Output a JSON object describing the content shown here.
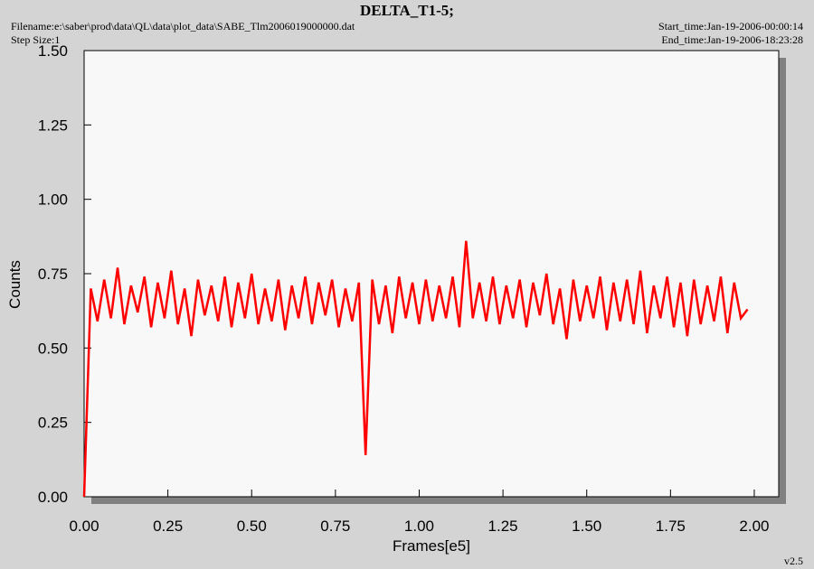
{
  "chart_data": {
    "type": "line",
    "title": "DELTA_T1-5;",
    "filename": "Filename:e:\\saber\\prod\\data\\QL\\data\\plot_data\\SABE_Tlm2006019000000.dat",
    "step_size": "Step Size:1",
    "start_time": "Start_time:Jan-19-2006-00:00:14",
    "end_time": "End_time:Jan-19-2006-18:23:28",
    "version": "v2.5",
    "xlabel": "Frames[e5]",
    "ylabel": "Counts",
    "xlim": [
      0,
      2.073
    ],
    "ylim": [
      0,
      1.5
    ],
    "xticks": [
      {
        "value": 0,
        "label": "0.00"
      },
      {
        "value": 0.25,
        "label": "0.25"
      },
      {
        "value": 0.5,
        "label": "0.50"
      },
      {
        "value": 0.75,
        "label": "0.75"
      },
      {
        "value": 1,
        "label": "1.00"
      },
      {
        "value": 1.25,
        "label": "1.25"
      },
      {
        "value": 1.5,
        "label": "1.50"
      },
      {
        "value": 1.75,
        "label": "1.75"
      },
      {
        "value": 2,
        "label": "2.00"
      }
    ],
    "yticks": [
      {
        "value": 0,
        "label": "0.00"
      },
      {
        "value": 0.25,
        "label": "0.25"
      },
      {
        "value": 0.5,
        "label": "0.50"
      },
      {
        "value": 0.75,
        "label": "0.75"
      },
      {
        "value": 1,
        "label": "1.00"
      },
      {
        "value": 1.25,
        "label": "1.25"
      },
      {
        "value": 1.5,
        "label": "1.50"
      }
    ],
    "series": [
      {
        "color": "#ff0000",
        "x": [
          0,
          0.02,
          0.04,
          0.06,
          0.08,
          0.1,
          0.12,
          0.14,
          0.16,
          0.18,
          0.2,
          0.22,
          0.24,
          0.26,
          0.28,
          0.3,
          0.32,
          0.34,
          0.36,
          0.38,
          0.4,
          0.42,
          0.44,
          0.46,
          0.48,
          0.5,
          0.52,
          0.54,
          0.56,
          0.58,
          0.6,
          0.62,
          0.64,
          0.66,
          0.68,
          0.7,
          0.72,
          0.74,
          0.76,
          0.78,
          0.8,
          0.82,
          0.84,
          0.86,
          0.88,
          0.9,
          0.92,
          0.94,
          0.96,
          0.98,
          1,
          1.02,
          1.04,
          1.06,
          1.08,
          1.1,
          1.12,
          1.14,
          1.16,
          1.18,
          1.2,
          1.22,
          1.24,
          1.26,
          1.28,
          1.3,
          1.32,
          1.34,
          1.36,
          1.38,
          1.4,
          1.42,
          1.44,
          1.46,
          1.48,
          1.5,
          1.52,
          1.54,
          1.56,
          1.58,
          1.6,
          1.62,
          1.64,
          1.66,
          1.68,
          1.7,
          1.72,
          1.74,
          1.76,
          1.78,
          1.8,
          1.82,
          1.84,
          1.86,
          1.88,
          1.9,
          1.92,
          1.94,
          1.96,
          1.98
        ],
        "values": [
          0,
          0.7,
          0.59,
          0.73,
          0.6,
          0.77,
          0.58,
          0.71,
          0.62,
          0.74,
          0.57,
          0.72,
          0.6,
          0.76,
          0.58,
          0.7,
          0.54,
          0.73,
          0.61,
          0.71,
          0.59,
          0.74,
          0.57,
          0.72,
          0.6,
          0.75,
          0.58,
          0.7,
          0.59,
          0.73,
          0.56,
          0.71,
          0.6,
          0.74,
          0.58,
          0.72,
          0.61,
          0.73,
          0.57,
          0.7,
          0.59,
          0.72,
          0.14,
          0.73,
          0.58,
          0.71,
          0.55,
          0.74,
          0.6,
          0.72,
          0.58,
          0.73,
          0.59,
          0.71,
          0.6,
          0.74,
          0.57,
          0.86,
          0.6,
          0.72,
          0.59,
          0.74,
          0.58,
          0.71,
          0.6,
          0.73,
          0.57,
          0.72,
          0.61,
          0.75,
          0.58,
          0.7,
          0.53,
          0.73,
          0.59,
          0.71,
          0.6,
          0.74,
          0.56,
          0.72,
          0.59,
          0.73,
          0.58,
          0.76,
          0.55,
          0.71,
          0.6,
          0.74,
          0.57,
          0.72,
          0.54,
          0.73,
          0.58,
          0.71,
          0.59,
          0.74,
          0.55,
          0.72,
          0.6,
          0.63
        ]
      }
    ]
  }
}
